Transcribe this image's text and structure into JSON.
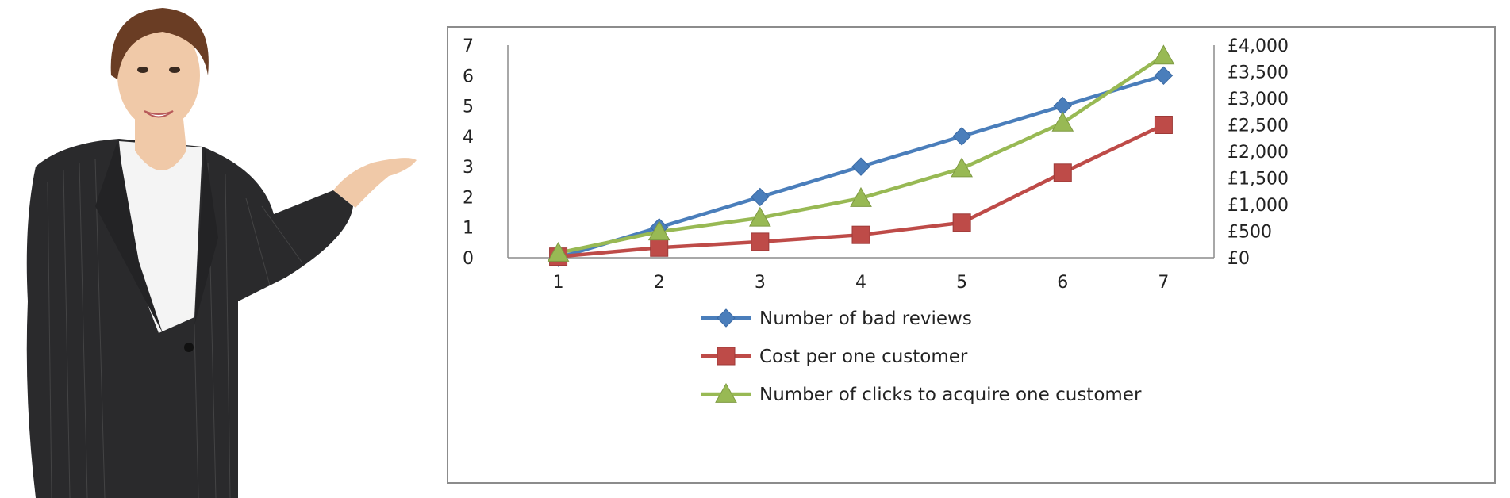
{
  "figure": {
    "photo": {
      "subject": "businesswoman-presenting",
      "colors": {
        "suit": "#2a2a2c",
        "shirt": "#f4f4f4",
        "skin": "#f0c9a8",
        "hair": "#6a3d24"
      }
    }
  },
  "chart_data": {
    "type": "line",
    "title": "",
    "xlabel": "",
    "ylabel": "",
    "x": [
      1,
      2,
      3,
      4,
      5,
      6,
      7
    ],
    "y_left": {
      "ticks": [
        "0",
        "1",
        "2",
        "3",
        "4",
        "5",
        "6",
        "7"
      ],
      "ylim": [
        0,
        7
      ]
    },
    "y_right": {
      "ticks": [
        "£0",
        "£500",
        "£1,000",
        "£1,500",
        "£2,000",
        "£2,500",
        "£3,000",
        "£3,500",
        "£4,000"
      ],
      "ylim": [
        0,
        4000
      ]
    },
    "grid": false,
    "legend_position": "bottom",
    "series": [
      {
        "name": "Number of bad reviews",
        "axis": "left",
        "marker": "diamond",
        "color": "#4a7ebb",
        "values": [
          0,
          1,
          2,
          3,
          4,
          5,
          6
        ]
      },
      {
        "name": "Cost per one customer",
        "axis": "right",
        "marker": "square",
        "color": "#be4b48",
        "values": [
          20,
          190,
          300,
          430,
          660,
          1600,
          2500
        ]
      },
      {
        "name": "Number of clicks to acquire one customer",
        "axis": "right",
        "marker": "triangle",
        "color": "#98b954",
        "values": [
          90,
          490,
          750,
          1120,
          1680,
          2540,
          3800
        ]
      }
    ]
  }
}
